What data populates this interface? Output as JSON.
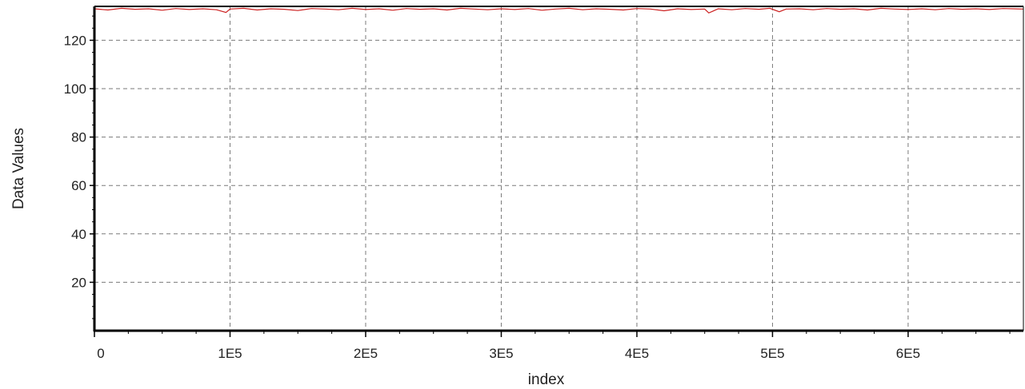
{
  "chart_data": {
    "type": "line",
    "title": "",
    "xlabel": "index",
    "ylabel": "Data Values",
    "xlim": [
      0,
      685000
    ],
    "ylim": [
      0,
      134
    ],
    "x_ticks": [
      0,
      100000,
      200000,
      300000,
      400000,
      500000,
      600000
    ],
    "x_tick_labels": [
      "0",
      "1E5",
      "2E5",
      "3E5",
      "4E5",
      "5E5",
      "6E5"
    ],
    "y_ticks": [
      20,
      40,
      60,
      80,
      100,
      120
    ],
    "y_tick_labels": [
      "20",
      "40",
      "60",
      "80",
      "100",
      "120"
    ],
    "grid": true,
    "legend": "none",
    "series": [
      {
        "color": "#cc1f1f",
        "x": [
          0,
          10000,
          20000,
          30000,
          40000,
          50000,
          60000,
          70000,
          80000,
          90000,
          97000,
          100000,
          110000,
          120000,
          130000,
          140000,
          150000,
          160000,
          170000,
          180000,
          190000,
          200000,
          210000,
          220000,
          230000,
          240000,
          250000,
          260000,
          270000,
          280000,
          290000,
          300000,
          310000,
          320000,
          330000,
          340000,
          350000,
          360000,
          370000,
          380000,
          390000,
          400000,
          410000,
          420000,
          430000,
          440000,
          450000,
          453000,
          460000,
          470000,
          480000,
          490000,
          498000,
          505000,
          510000,
          520000,
          530000,
          540000,
          550000,
          560000,
          570000,
          580000,
          590000,
          600000,
          610000,
          620000,
          630000,
          640000,
          650000,
          660000,
          670000,
          685000
        ],
        "y": [
          133,
          132.5,
          133.2,
          132.8,
          133,
          132.4,
          133.1,
          132.7,
          133,
          132.6,
          131.5,
          132.9,
          133.2,
          132.5,
          133,
          132.8,
          132.3,
          133.1,
          132.9,
          132.6,
          133.2,
          132.7,
          133,
          132.4,
          133.1,
          132.8,
          133,
          132.5,
          133.2,
          132.9,
          132.6,
          133,
          132.7,
          133.1,
          132.4,
          132.9,
          133.2,
          132.6,
          133,
          132.8,
          132.5,
          133.1,
          132.9,
          132.2,
          133,
          132.7,
          132.9,
          131.3,
          133,
          132.6,
          133.1,
          132.8,
          133.2,
          131.8,
          132.9,
          133,
          132.6,
          133.1,
          132.8,
          133,
          132.5,
          133.2,
          132.9,
          132.7,
          133,
          132.6,
          133.1,
          132.8,
          133,
          132.7,
          133.1,
          132.9
        ]
      }
    ]
  }
}
